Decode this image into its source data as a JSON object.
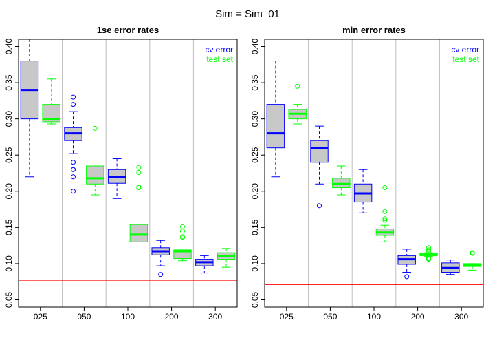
{
  "page_title": "Sim = Sim_01",
  "colors": {
    "cv_error": "#0000FF",
    "test_set": "#00FF00",
    "box_fill": "#C8C8C8",
    "reference_line": "#FF0000",
    "separator": "#BEBEBE"
  },
  "chart_data": [
    {
      "type": "boxplot",
      "title": "1se error rates",
      "categories": [
        "025",
        "050",
        "100",
        "200",
        "300"
      ],
      "ylim": [
        0.04,
        0.41
      ],
      "yticks": [
        "0.05",
        "0.10",
        "0.15",
        "0.20",
        "0.25",
        "0.30",
        "0.35",
        "0.40"
      ],
      "reference_line": 0.077,
      "legend": {
        "position": "top-right",
        "entries": [
          "cv error",
          "test set"
        ]
      },
      "series": [
        {
          "name": "cv error",
          "boxes": [
            {
              "low": 0.22,
              "q1": 0.3,
              "median": 0.34,
              "q3": 0.38,
              "high": 0.41,
              "outliers": []
            },
            {
              "low": 0.252,
              "q1": 0.27,
              "median": 0.28,
              "q3": 0.288,
              "high": 0.31,
              "outliers": [
                0.33,
                0.32,
                0.24,
                0.23,
                0.23,
                0.22,
                0.2
              ]
            },
            {
              "low": 0.19,
              "q1": 0.211,
              "median": 0.22,
              "q3": 0.23,
              "high": 0.245,
              "outliers": []
            },
            {
              "low": 0.097,
              "q1": 0.112,
              "median": 0.117,
              "q3": 0.122,
              "high": 0.132,
              "outliers": [
                0.085
              ]
            },
            {
              "low": 0.087,
              "q1": 0.097,
              "median": 0.102,
              "q3": 0.106,
              "high": 0.111,
              "outliers": []
            }
          ]
        },
        {
          "name": "test set",
          "boxes": [
            {
              "low": 0.293,
              "q1": 0.296,
              "median": 0.3,
              "q3": 0.32,
              "high": 0.355,
              "outliers": []
            },
            {
              "low": 0.195,
              "q1": 0.21,
              "median": 0.218,
              "q3": 0.235,
              "high": 0.235,
              "outliers": [
                0.287
              ]
            },
            {
              "low": 0.13,
              "q1": 0.13,
              "median": 0.14,
              "q3": 0.154,
              "high": 0.154,
              "outliers": [
                0.233,
                0.226,
                0.206,
                0.205
              ]
            },
            {
              "low": 0.104,
              "q1": 0.107,
              "median": 0.117,
              "q3": 0.119,
              "high": 0.119,
              "outliers": [
                0.151,
                0.145,
                0.137,
                0.136
              ]
            },
            {
              "low": 0.095,
              "q1": 0.106,
              "median": 0.11,
              "q3": 0.115,
              "high": 0.121,
              "outliers": []
            }
          ]
        }
      ]
    },
    {
      "type": "boxplot",
      "title": "min error rates",
      "categories": [
        "025",
        "050",
        "100",
        "200",
        "300"
      ],
      "ylim": [
        0.04,
        0.41
      ],
      "yticks": [
        "0.05",
        "0.10",
        "0.15",
        "0.20",
        "0.25",
        "0.30",
        "0.35",
        "0.40"
      ],
      "reference_line": 0.071,
      "legend": {
        "position": "top-right",
        "entries": [
          "cv error",
          "test set"
        ]
      },
      "series": [
        {
          "name": "cv error",
          "boxes": [
            {
              "low": 0.22,
              "q1": 0.26,
              "median": 0.28,
              "q3": 0.32,
              "high": 0.38,
              "outliers": []
            },
            {
              "low": 0.21,
              "q1": 0.24,
              "median": 0.26,
              "q3": 0.27,
              "high": 0.29,
              "outliers": [
                0.18
              ]
            },
            {
              "low": 0.17,
              "q1": 0.185,
              "median": 0.197,
              "q3": 0.21,
              "high": 0.23,
              "outliers": []
            },
            {
              "low": 0.088,
              "q1": 0.099,
              "median": 0.106,
              "q3": 0.111,
              "high": 0.12,
              "outliers": [
                0.082
              ]
            },
            {
              "low": 0.085,
              "q1": 0.088,
              "median": 0.094,
              "q3": 0.101,
              "high": 0.105,
              "outliers": []
            }
          ]
        },
        {
          "name": "test set",
          "boxes": [
            {
              "low": 0.293,
              "q1": 0.3,
              "median": 0.307,
              "q3": 0.313,
              "high": 0.32,
              "outliers": [
                0.345
              ]
            },
            {
              "low": 0.195,
              "q1": 0.205,
              "median": 0.21,
              "q3": 0.218,
              "high": 0.235,
              "outliers": []
            },
            {
              "low": 0.13,
              "q1": 0.139,
              "median": 0.143,
              "q3": 0.148,
              "high": 0.153,
              "outliers": [
                0.205,
                0.172,
                0.162,
                0.16
              ]
            },
            {
              "low": 0.11,
              "q1": 0.111,
              "median": 0.112,
              "q3": 0.114,
              "high": 0.115,
              "outliers": [
                0.122,
                0.119,
                0.117,
                0.108,
                0.107,
                0.106
              ]
            },
            {
              "low": 0.091,
              "q1": 0.096,
              "median": 0.098,
              "q3": 0.1,
              "high": 0.1,
              "outliers": [
                0.115,
                0.114
              ]
            }
          ]
        }
      ]
    }
  ]
}
